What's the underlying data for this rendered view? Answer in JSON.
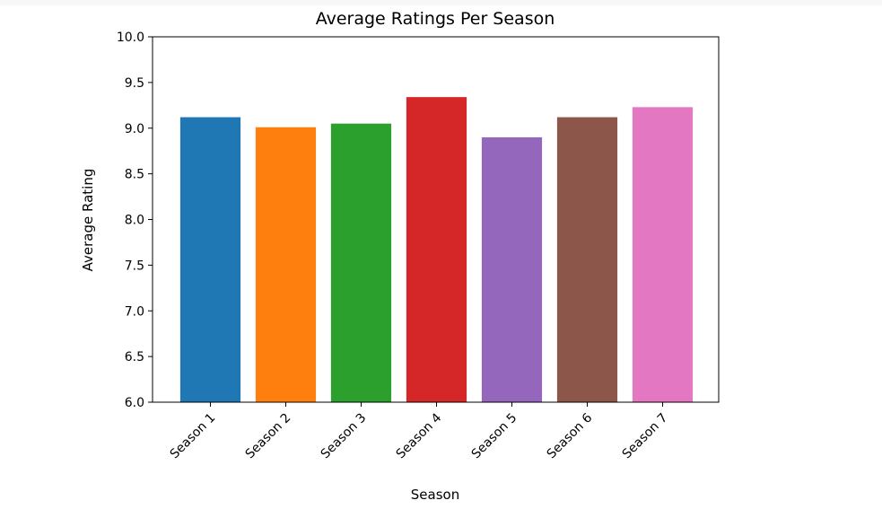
{
  "chart_data": {
    "type": "bar",
    "title": "Average Ratings Per Season",
    "xlabel": "Season",
    "ylabel": "Average Rating",
    "ylim": [
      6.0,
      10.0
    ],
    "yticks": [
      "6.0",
      "6.5",
      "7.0",
      "7.5",
      "8.0",
      "8.5",
      "9.0",
      "9.5",
      "10.0"
    ],
    "categories": [
      "Season 1",
      "Season 2",
      "Season 3",
      "Season 4",
      "Season 5",
      "Season 6",
      "Season 7"
    ],
    "values": [
      9.12,
      9.01,
      9.05,
      9.34,
      8.9,
      9.12,
      9.23
    ],
    "colors": [
      "#1f77b4",
      "#ff7f0e",
      "#2ca02c",
      "#d62728",
      "#9467bd",
      "#8c564b",
      "#e377c2"
    ],
    "grid": false,
    "legend": "none"
  }
}
